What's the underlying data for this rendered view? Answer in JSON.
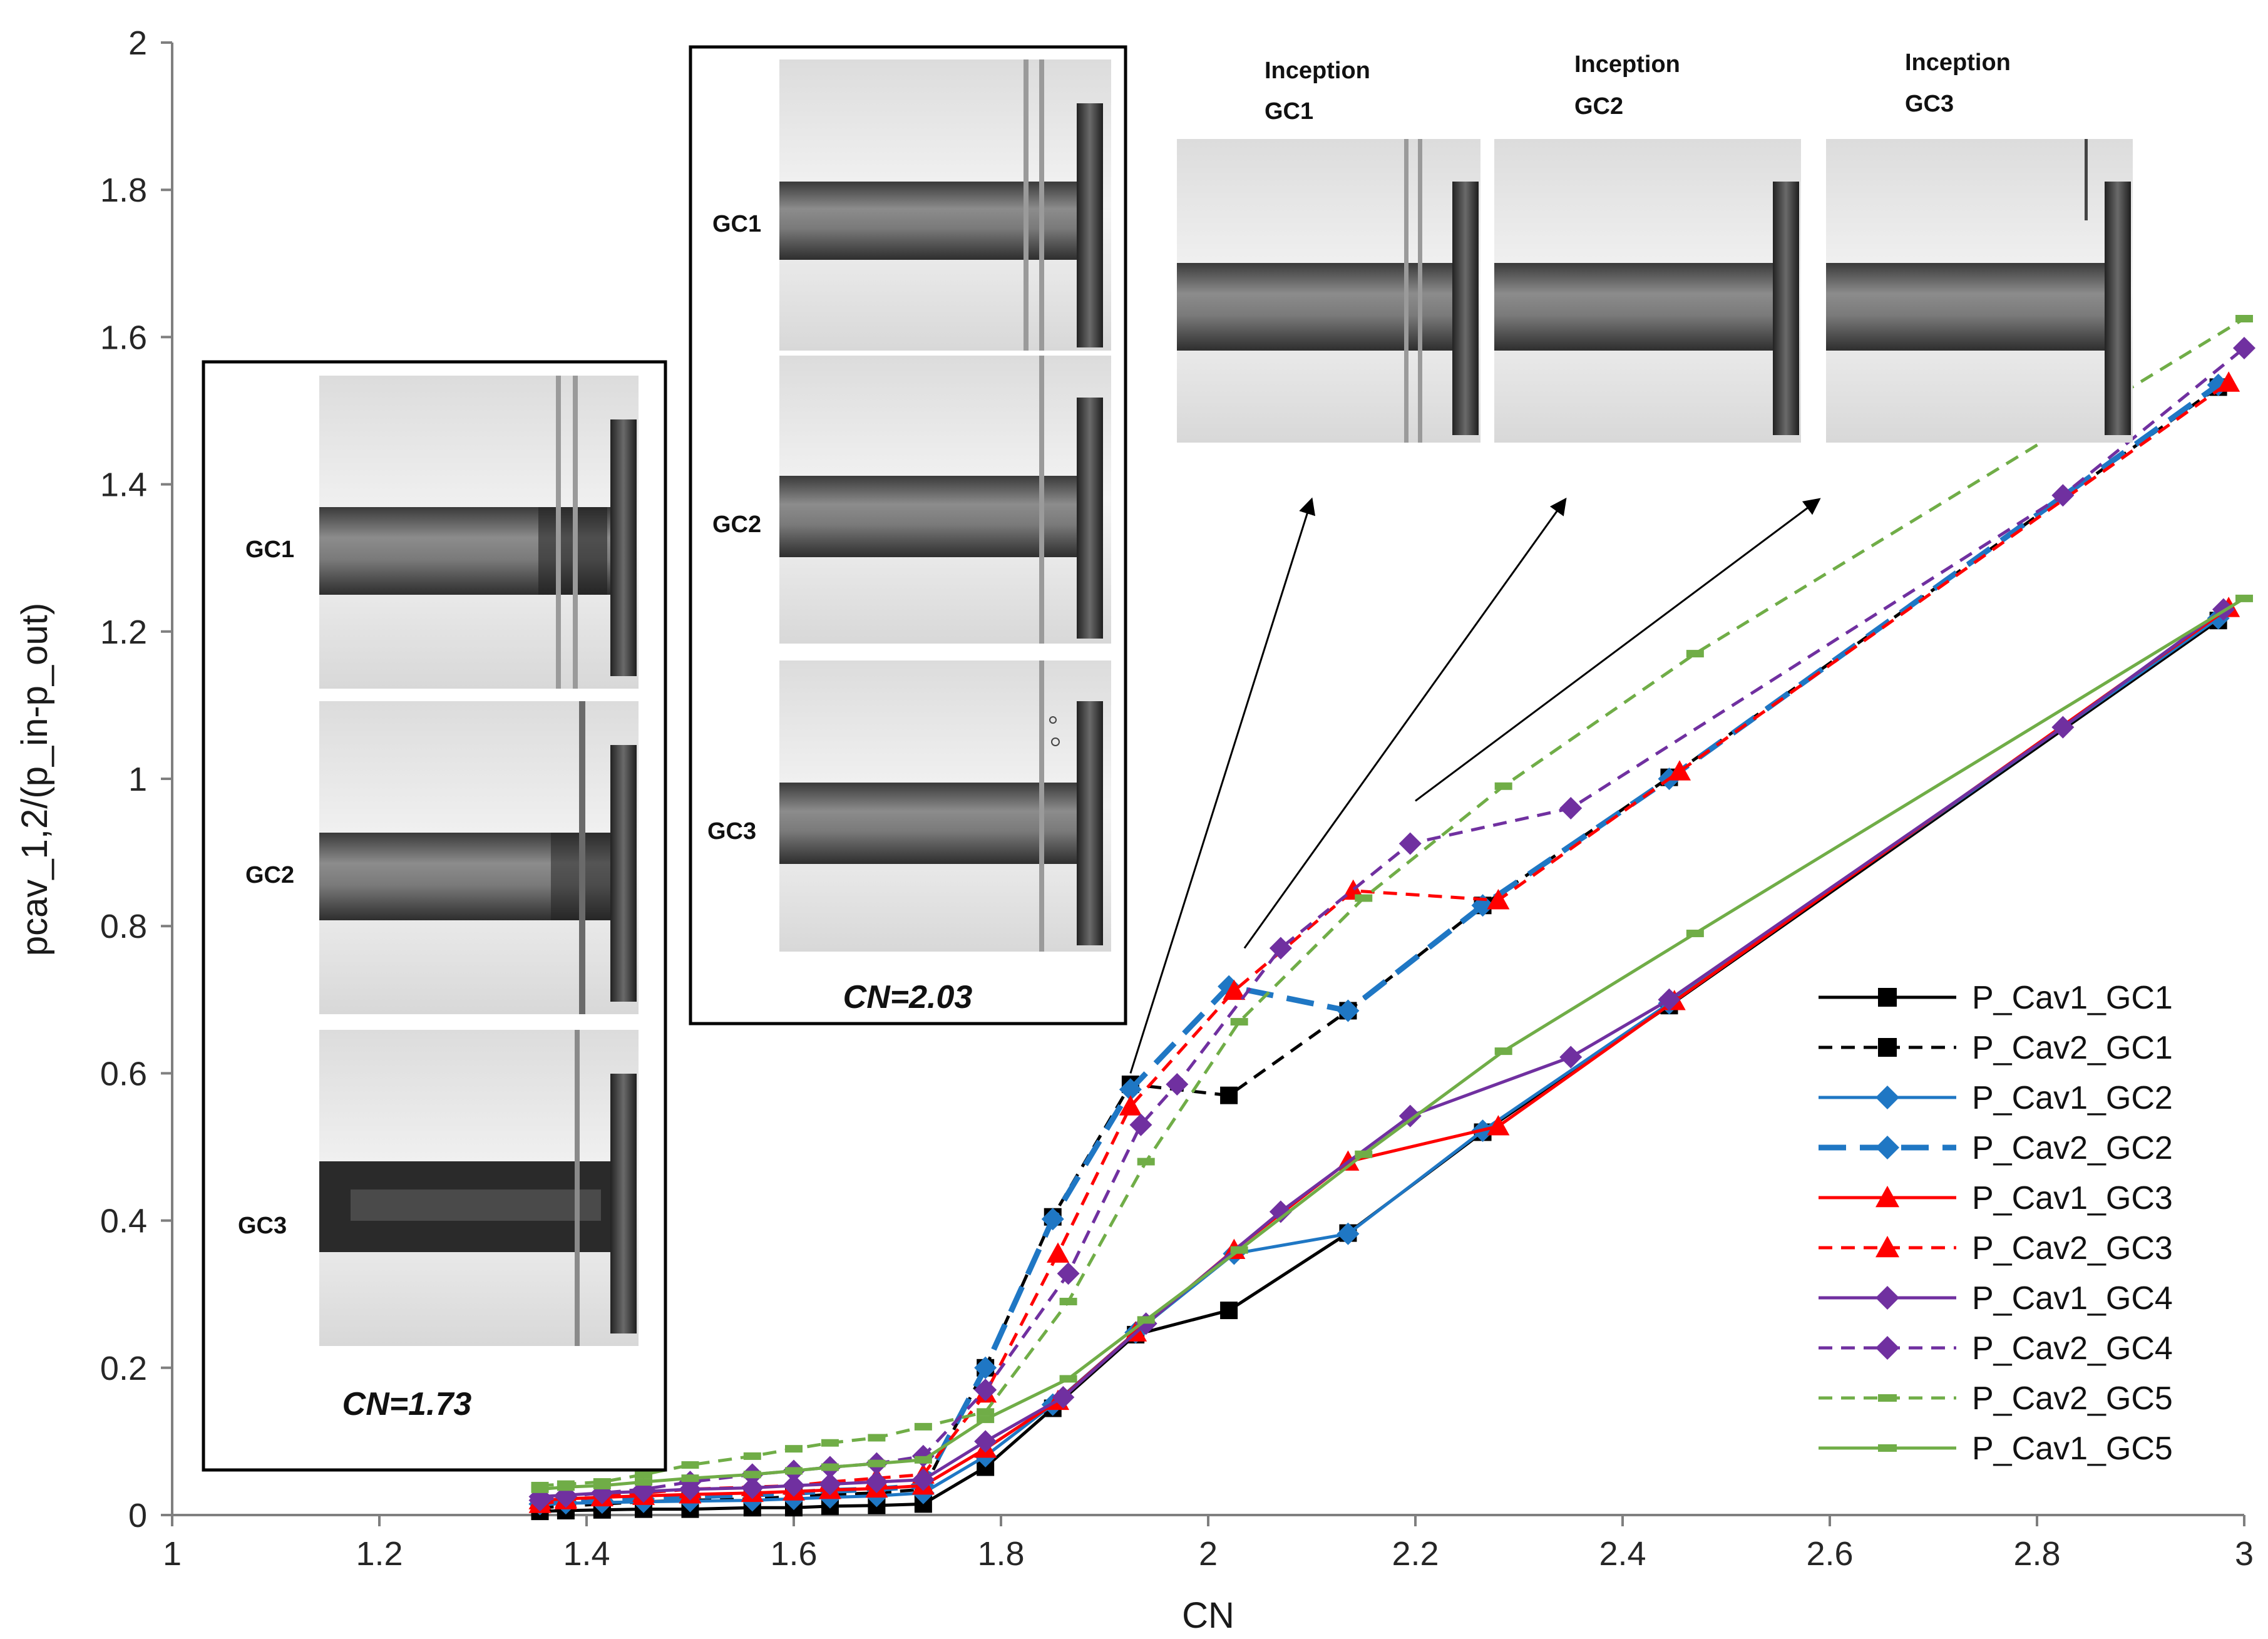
{
  "chart_data": {
    "type": "line",
    "xlabel": "CN",
    "ylabel": "pcav_1,2/(p_in-p_out)",
    "xlim": [
      1,
      3
    ],
    "ylim": [
      0,
      2
    ],
    "xticks": [
      "1",
      "1.2",
      "1.4",
      "1.6",
      "1.8",
      "2",
      "2.2",
      "2.4",
      "2.6",
      "2.8",
      "3"
    ],
    "yticks": [
      "0",
      "0.2",
      "0.4",
      "0.6",
      "0.8",
      "1",
      "1.2",
      "1.4",
      "1.6",
      "1.8",
      "2"
    ],
    "legend_position": "bottom-right",
    "series": [
      {
        "name": "P_Cav1_GC1",
        "color": "#000000",
        "dash": "solid",
        "marker": "square",
        "width": 5,
        "points": [
          [
            1.355,
            0.005
          ],
          [
            1.38,
            0.006
          ],
          [
            1.415,
            0.007
          ],
          [
            1.455,
            0.008
          ],
          [
            1.5,
            0.008
          ],
          [
            1.56,
            0.01
          ],
          [
            1.6,
            0.01
          ],
          [
            1.635,
            0.012
          ],
          [
            1.68,
            0.013
          ],
          [
            1.725,
            0.015
          ],
          [
            1.785,
            0.065
          ],
          [
            1.85,
            0.145
          ],
          [
            1.93,
            0.245
          ],
          [
            2.02,
            0.278
          ],
          [
            2.135,
            0.383
          ],
          [
            2.265,
            0.52
          ],
          [
            2.445,
            0.692
          ],
          [
            2.975,
            1.215
          ]
        ]
      },
      {
        "name": "P_Cav2_GC1",
        "color": "#000000",
        "dash": "dashed",
        "marker": "square",
        "width": 5,
        "points": [
          [
            1.355,
            0.01
          ],
          [
            1.38,
            0.012
          ],
          [
            1.415,
            0.015
          ],
          [
            1.455,
            0.018
          ],
          [
            1.5,
            0.02
          ],
          [
            1.56,
            0.022
          ],
          [
            1.6,
            0.025
          ],
          [
            1.635,
            0.028
          ],
          [
            1.68,
            0.03
          ],
          [
            1.725,
            0.035
          ],
          [
            1.785,
            0.2
          ],
          [
            1.85,
            0.405
          ],
          [
            1.925,
            0.585
          ],
          [
            2.02,
            0.57
          ],
          [
            2.135,
            0.685
          ],
          [
            2.265,
            0.828
          ],
          [
            2.445,
            1.002
          ],
          [
            2.975,
            1.532
          ]
        ]
      },
      {
        "name": "P_Cav1_GC2",
        "color": "#1F77C4",
        "dash": "solid",
        "marker": "diamond",
        "width": 5,
        "points": [
          [
            1.355,
            0.015
          ],
          [
            1.38,
            0.016
          ],
          [
            1.415,
            0.017
          ],
          [
            1.455,
            0.018
          ],
          [
            1.5,
            0.019
          ],
          [
            1.56,
            0.02
          ],
          [
            1.6,
            0.022
          ],
          [
            1.635,
            0.024
          ],
          [
            1.68,
            0.026
          ],
          [
            1.725,
            0.03
          ],
          [
            1.785,
            0.08
          ],
          [
            1.85,
            0.15
          ],
          [
            1.93,
            0.248
          ],
          [
            2.025,
            0.355
          ],
          [
            2.135,
            0.382
          ],
          [
            2.265,
            0.522
          ],
          [
            2.445,
            0.695
          ],
          [
            2.975,
            1.218
          ]
        ]
      },
      {
        "name": "P_Cav2_GC2",
        "color": "#1F77C4",
        "dash": "longdash",
        "marker": "diamond",
        "width": 9,
        "points": [
          [
            1.355,
            0.015
          ],
          [
            1.38,
            0.018
          ],
          [
            1.415,
            0.02
          ],
          [
            1.455,
            0.022
          ],
          [
            1.5,
            0.025
          ],
          [
            1.56,
            0.028
          ],
          [
            1.6,
            0.03
          ],
          [
            1.635,
            0.033
          ],
          [
            1.68,
            0.035
          ],
          [
            1.725,
            0.04
          ],
          [
            1.785,
            0.2
          ],
          [
            1.85,
            0.402
          ],
          [
            1.925,
            0.578
          ],
          [
            2.02,
            0.718
          ],
          [
            2.135,
            0.685
          ],
          [
            2.265,
            0.828
          ],
          [
            2.445,
            1.0
          ],
          [
            2.975,
            1.535
          ]
        ]
      },
      {
        "name": "P_Cav1_GC3",
        "color": "#FF0000",
        "dash": "solid",
        "marker": "triangle",
        "width": 5,
        "points": [
          [
            1.355,
            0.02
          ],
          [
            1.38,
            0.022
          ],
          [
            1.415,
            0.024
          ],
          [
            1.455,
            0.026
          ],
          [
            1.5,
            0.028
          ],
          [
            1.56,
            0.03
          ],
          [
            1.6,
            0.032
          ],
          [
            1.635,
            0.034
          ],
          [
            1.68,
            0.036
          ],
          [
            1.725,
            0.04
          ],
          [
            1.785,
            0.09
          ],
          [
            1.855,
            0.155
          ],
          [
            1.93,
            0.248
          ],
          [
            2.025,
            0.36
          ],
          [
            2.135,
            0.48
          ],
          [
            2.28,
            0.528
          ],
          [
            2.45,
            0.698
          ],
          [
            2.985,
            1.232
          ]
        ]
      },
      {
        "name": "P_Cav2_GC3",
        "color": "#FF0000",
        "dash": "dashed",
        "marker": "triangle",
        "width": 5,
        "points": [
          [
            1.355,
            0.015
          ],
          [
            1.38,
            0.02
          ],
          [
            1.415,
            0.025
          ],
          [
            1.455,
            0.03
          ],
          [
            1.5,
            0.035
          ],
          [
            1.56,
            0.038
          ],
          [
            1.6,
            0.04
          ],
          [
            1.635,
            0.045
          ],
          [
            1.68,
            0.05
          ],
          [
            1.725,
            0.055
          ],
          [
            1.785,
            0.165
          ],
          [
            1.855,
            0.355
          ],
          [
            1.925,
            0.555
          ],
          [
            2.025,
            0.712
          ],
          [
            2.14,
            0.848
          ],
          [
            2.28,
            0.835
          ],
          [
            2.455,
            1.01
          ],
          [
            2.985,
            1.538
          ]
        ]
      },
      {
        "name": "P_Cav1_GC4",
        "color": "#7030A0",
        "dash": "solid",
        "marker": "diamond",
        "width": 5,
        "points": [
          [
            1.355,
            0.025
          ],
          [
            1.38,
            0.027
          ],
          [
            1.415,
            0.03
          ],
          [
            1.455,
            0.032
          ],
          [
            1.5,
            0.035
          ],
          [
            1.56,
            0.037
          ],
          [
            1.6,
            0.04
          ],
          [
            1.635,
            0.042
          ],
          [
            1.68,
            0.045
          ],
          [
            1.725,
            0.048
          ],
          [
            1.785,
            0.1
          ],
          [
            1.86,
            0.16
          ],
          [
            1.94,
            0.26
          ],
          [
            2.07,
            0.412
          ],
          [
            2.195,
            0.542
          ],
          [
            2.35,
            0.622
          ],
          [
            2.445,
            0.7
          ],
          [
            2.825,
            1.07
          ],
          [
            2.98,
            1.23
          ]
        ]
      },
      {
        "name": "P_Cav2_GC4",
        "color": "#7030A0",
        "dash": "dashed",
        "marker": "diamond",
        "width": 5,
        "points": [
          [
            1.355,
            0.02
          ],
          [
            1.38,
            0.025
          ],
          [
            1.415,
            0.03
          ],
          [
            1.455,
            0.035
          ],
          [
            1.5,
            0.045
          ],
          [
            1.56,
            0.055
          ],
          [
            1.6,
            0.06
          ],
          [
            1.635,
            0.065
          ],
          [
            1.68,
            0.07
          ],
          [
            1.725,
            0.08
          ],
          [
            1.785,
            0.17
          ],
          [
            1.865,
            0.328
          ],
          [
            1.935,
            0.53
          ],
          [
            1.97,
            0.585
          ],
          [
            2.07,
            0.77
          ],
          [
            2.195,
            0.912
          ],
          [
            2.35,
            0.96
          ],
          [
            2.825,
            1.385
          ],
          [
            3.0,
            1.585
          ]
        ]
      },
      {
        "name": "P_Cav2_GC5",
        "color": "#70AD47",
        "dash": "dashed",
        "marker": "dash",
        "width": 5,
        "points": [
          [
            1.355,
            0.04
          ],
          [
            1.38,
            0.042
          ],
          [
            1.415,
            0.045
          ],
          [
            1.455,
            0.055
          ],
          [
            1.5,
            0.068
          ],
          [
            1.56,
            0.08
          ],
          [
            1.6,
            0.09
          ],
          [
            1.635,
            0.098
          ],
          [
            1.68,
            0.105
          ],
          [
            1.725,
            0.12
          ],
          [
            1.785,
            0.14
          ],
          [
            1.865,
            0.29
          ],
          [
            1.94,
            0.48
          ],
          [
            2.03,
            0.67
          ],
          [
            2.15,
            0.838
          ],
          [
            2.285,
            0.99
          ],
          [
            2.47,
            1.17
          ],
          [
            3.0,
            1.625
          ]
        ]
      },
      {
        "name": "P_Cav1_GC5",
        "color": "#70AD47",
        "dash": "solid",
        "marker": "dash",
        "width": 5,
        "points": [
          [
            1.355,
            0.035
          ],
          [
            1.38,
            0.038
          ],
          [
            1.415,
            0.04
          ],
          [
            1.455,
            0.045
          ],
          [
            1.5,
            0.05
          ],
          [
            1.56,
            0.055
          ],
          [
            1.6,
            0.06
          ],
          [
            1.635,
            0.065
          ],
          [
            1.68,
            0.07
          ],
          [
            1.725,
            0.075
          ],
          [
            1.785,
            0.13
          ],
          [
            1.865,
            0.185
          ],
          [
            1.94,
            0.265
          ],
          [
            2.03,
            0.36
          ],
          [
            2.15,
            0.49
          ],
          [
            2.285,
            0.63
          ],
          [
            2.47,
            0.79
          ],
          [
            3.0,
            1.245
          ]
        ]
      }
    ],
    "annotations": {
      "arrows": [
        {
          "from": [
            1.925,
            0.6
          ],
          "to": [
            2.1,
            1.38
          ]
        },
        {
          "from": [
            2.035,
            0.77
          ],
          "to": [
            2.345,
            1.38
          ]
        },
        {
          "from": [
            2.2,
            0.97
          ],
          "to": [
            2.59,
            1.38
          ]
        }
      ]
    }
  },
  "insets": {
    "cn173": {
      "label": "CN=1.73",
      "rows": [
        {
          "label": "GC1"
        },
        {
          "label": "GC2"
        },
        {
          "label": "GC3"
        }
      ]
    },
    "cn203": {
      "label": "CN=2.03",
      "rows": [
        {
          "label": "GC1"
        },
        {
          "label": "GC2"
        },
        {
          "label": "GC3"
        }
      ]
    },
    "inception": [
      {
        "title_line1": "Inception",
        "title_line2": "GC1"
      },
      {
        "title_line1": "Inception",
        "title_line2": "GC2"
      },
      {
        "title_line1": "Inception",
        "title_line2": "GC3"
      }
    ]
  }
}
